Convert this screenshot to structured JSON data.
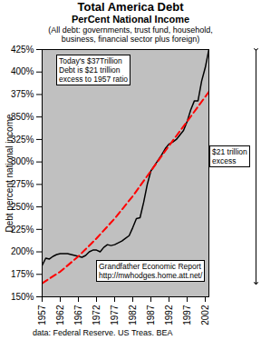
{
  "chart_data": {
    "type": "line",
    "title": "Total America Debt",
    "subtitle": [
      "PerCent National Income",
      "(All debt: governments, trust fund, household, business, financial sector plus foreign)"
    ],
    "source": "data: Federal Reserve. US Treas. BEA",
    "ylabel": "Debt percent national income",
    "xlim": [
      1957,
      2003
    ],
    "xticks": [
      1957,
      1962,
      1967,
      1972,
      1977,
      1982,
      1987,
      1992,
      1997,
      2002
    ],
    "ylim": [
      150,
      425
    ],
    "yticks": [
      {
        "value": 150,
        "label": "150%"
      },
      {
        "value": 175,
        "label": "175%"
      },
      {
        "value": 200,
        "label": "200%"
      },
      {
        "value": 225,
        "label": "225%"
      },
      {
        "value": 250,
        "label": "250%"
      },
      {
        "value": 275,
        "label": "275%"
      },
      {
        "value": 300,
        "label": "300%"
      },
      {
        "value": 325,
        "label": "325%"
      },
      {
        "value": 350,
        "label": "350%"
      },
      {
        "value": 375,
        "label": "375%"
      },
      {
        "value": 400,
        "label": "400%"
      },
      {
        "value": 425,
        "label": "425%"
      }
    ],
    "grid": false,
    "series": [
      {
        "color": "#000000",
        "line_style": "solid",
        "x": [
          1957,
          1958,
          1959,
          1960,
          1961,
          1962,
          1963,
          1964,
          1965,
          1966,
          1967,
          1968,
          1969,
          1970,
          1971,
          1972,
          1973,
          1974,
          1975,
          1976,
          1977,
          1978,
          1979,
          1980,
          1981,
          1982,
          1983,
          1984,
          1985,
          1986,
          1987,
          1988,
          1989,
          1990,
          1991,
          1992,
          1993,
          1994,
          1995,
          1996,
          1997,
          1998,
          1999,
          2000,
          2001,
          2002,
          2003
        ],
        "values": [
          185,
          193,
          192,
          195,
          197,
          198,
          198,
          198,
          197,
          196,
          195,
          194,
          196,
          200,
          202,
          202,
          200,
          205,
          208,
          207,
          208,
          210,
          212,
          215,
          218,
          227,
          237,
          238,
          255,
          275,
          290,
          296,
          302,
          308,
          315,
          320,
          322,
          325,
          330,
          335,
          345,
          358,
          368,
          368,
          390,
          405,
          425
        ]
      },
      {
        "color": "#ff0000",
        "line_style": "dashed",
        "x": [
          1957,
          1962,
          1967,
          1972,
          1977,
          1982,
          1987,
          1992,
          1997,
          2003
        ],
        "values": [
          165,
          178,
          195,
          215,
          237,
          262,
          290,
          318,
          345,
          378
        ]
      }
    ],
    "annotations": [
      "Today's $37Trillion\nDebt is $21 trillion\nexcess to 1957 ratio",
      "$21 trillion\nexcess",
      "Grandfather Economic Report\nhttp://mwhodges.home.att.net/"
    ]
  }
}
